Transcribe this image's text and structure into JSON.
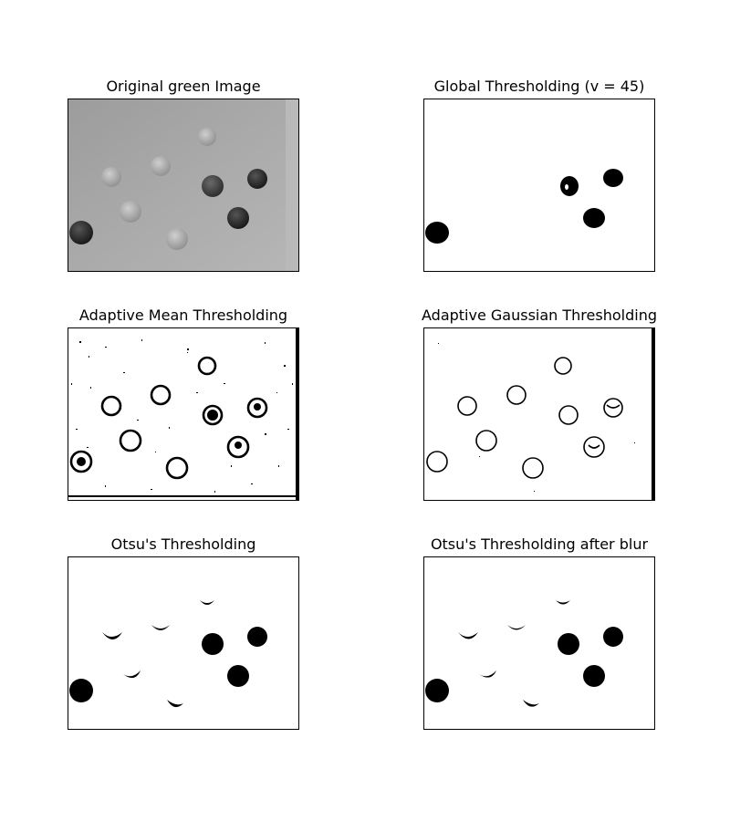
{
  "panels": [
    {
      "title": "Original green Image"
    },
    {
      "title": "Global Thresholding (v = 45)"
    },
    {
      "title": "Adaptive Mean Thresholding"
    },
    {
      "title": "Adaptive Gaussian Thresholding"
    },
    {
      "title": "Otsu's Thresholding"
    },
    {
      "title": "Otsu's Thresholding after blur"
    }
  ]
}
